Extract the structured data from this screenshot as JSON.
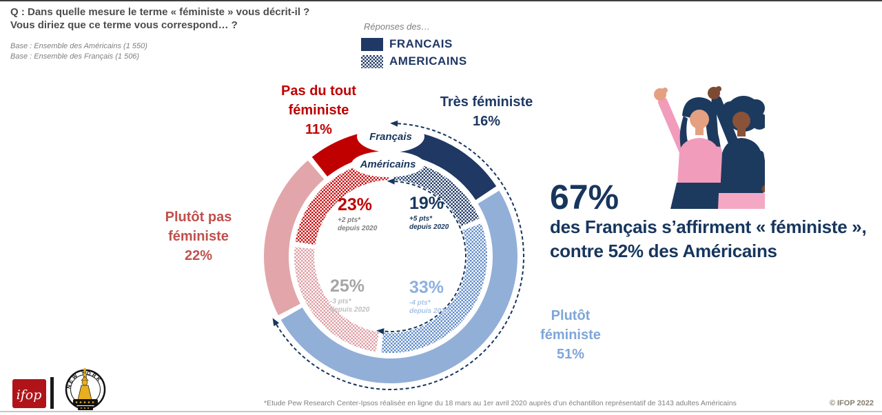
{
  "header": {
    "question_line1": "Q : Dans quelle mesure le terme « féministe » vous décrit-il ?",
    "question_line2": "Vous diriez que ce terme vous correspond… ?",
    "base_line1": "Base : Ensemble des Américains (1 550)",
    "base_line2": "Base : Ensemble des Français (1 506)"
  },
  "legend": {
    "intro": "Réponses des…",
    "items": [
      {
        "label": "FRANCAIS",
        "swatch": "solid"
      },
      {
        "label": "AMERICAINS",
        "swatch": "checker"
      }
    ]
  },
  "chart_data": {
    "type": "donut",
    "title": "Dans quelle mesure le terme « féministe » vous décrit-il ?",
    "categories": [
      "Très féministe",
      "Plutôt féministe",
      "Plutôt pas féministe",
      "Pas du tout féministe"
    ],
    "series": [
      {
        "name": "Français",
        "ring": "outer",
        "style": "solid",
        "values": [
          16,
          51,
          22,
          11
        ]
      },
      {
        "name": "Américains",
        "ring": "inner",
        "style": "checker",
        "values": [
          19,
          33,
          25,
          23
        ],
        "change_since_2020": [
          "+5 pts*",
          "-4 pts*",
          "-3 pts*",
          "+2 pts*"
        ]
      }
    ],
    "arrow_spans": {
      "francais_feministe_total": 67,
      "americains_feministe_total": 52
    },
    "legend_position": "top",
    "start_angle_deg": 0,
    "direction": "clockwise"
  },
  "donut": {
    "ring_labels": {
      "francais": "Français",
      "americains": "Américains"
    },
    "labels": {
      "tres": {
        "l1": "Très féministe",
        "l2": "16%"
      },
      "pas": {
        "l1": "Pas du tout",
        "l2": "féministe",
        "l3": "11%"
      },
      "plutot_pas": {
        "l1": "Plutôt pas",
        "l2": "féministe",
        "l3": "22%"
      },
      "plutot": {
        "l1": "Plutôt",
        "l2": "féministe",
        "l3": "51%"
      }
    },
    "inner_values": {
      "pas": {
        "pct": "23%",
        "delta": "+2 pts*",
        "since": "depuis 2020"
      },
      "tres": {
        "pct": "19%",
        "delta": "+5 pts*",
        "since": "depuis 2020"
      },
      "plutot_pas": {
        "pct": "25%",
        "delta": "-3 pts*",
        "since": "depuis 2020"
      },
      "plutot": {
        "pct": "33%",
        "delta": "-4 pts*",
        "since": "depuis 2020"
      }
    }
  },
  "headline": {
    "big": "67%",
    "line1": "des Français s’affirment « féministe »,",
    "line2": "contre 52% des Américains"
  },
  "footer": {
    "note": "*Etude Pew Research Center-Ipsos réalisée en ligne du 18 mars au 1er avril 2020 auprès d’un échantillon représentatif de 3143 adultes Américains",
    "copyright": "© IFOP 2022",
    "ifop_logo_text": "ifop",
    "ny_badge_text": "NEW YORK"
  },
  "colors": {
    "navy": "#1F3864",
    "dark_navy": "#17365D",
    "light_blue": "#92AFD8",
    "pink": "#E2A6AA",
    "red": "#C00000",
    "dot_navy": "#1F3864",
    "dot_blue": "#5E8AC7",
    "dot_pink": "#DC9BA1",
    "dot_red": "#C40A0C",
    "label_red": "#C0504D",
    "label_light_blue": "#7EA6D8",
    "gray_text": "#7F7F7F",
    "value_gray": "#A6A6A6",
    "value_gray_light": "#BFBFBF",
    "value_blue": "#8DB0DE",
    "value_blue_light": "#A8C4E4",
    "question_text": "#4D4D4D",
    "copyright_text": "#847B6D"
  }
}
